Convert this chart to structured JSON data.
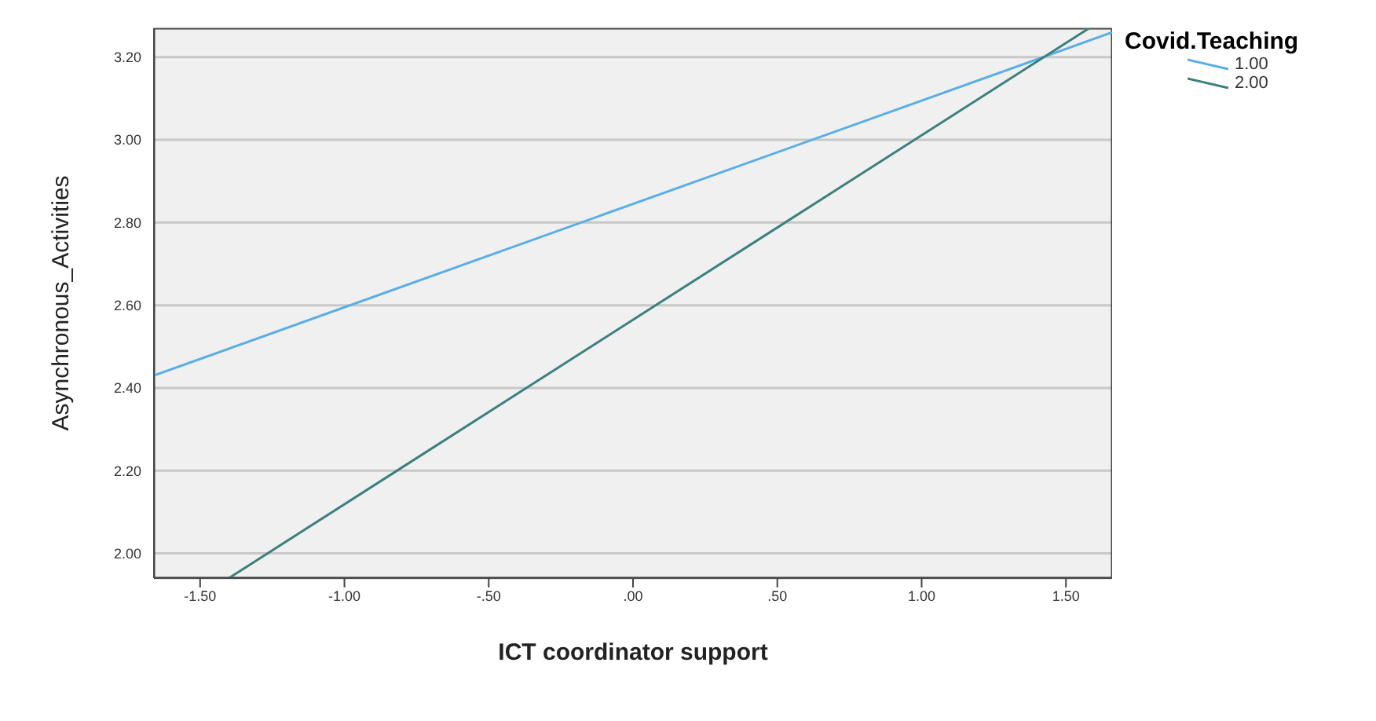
{
  "chart_data": {
    "type": "line",
    "xlabel": "ICT coordinator support",
    "ylabel": "Asynchronous_Activities",
    "legend_title": "Covid.Teaching",
    "legend": "top right",
    "xlim": [
      -1.66,
      1.66
    ],
    "ylim": [
      1.94,
      3.27
    ],
    "xticks": [
      {
        "value": -1.5,
        "label": "-1.50"
      },
      {
        "value": -1,
        "label": "-1.00"
      },
      {
        "value": -0.5,
        "label": "-.50"
      },
      {
        "value": 0,
        "label": ".00"
      },
      {
        "value": 0.5,
        "label": ".50"
      },
      {
        "value": 1,
        "label": "1.00"
      },
      {
        "value": 1.5,
        "label": "1.50"
      }
    ],
    "yticks": [
      {
        "value": 2,
        "label": "2.00"
      },
      {
        "value": 2.2,
        "label": "2.20"
      },
      {
        "value": 2.4,
        "label": "2.40"
      },
      {
        "value": 2.6,
        "label": "2.60"
      },
      {
        "value": 2.8,
        "label": "2.80"
      },
      {
        "value": 3,
        "label": "3.00"
      },
      {
        "value": 3.2,
        "label": "3.20"
      }
    ],
    "grid": "y",
    "marker": "none",
    "series": [
      {
        "name": "1.00",
        "color": "#5aaee6",
        "x": [
          -1.66,
          1.66
        ],
        "values": [
          2.43,
          3.26
        ]
      },
      {
        "name": "2.00",
        "color": "#3d8080",
        "x": [
          -1.4,
          1.58
        ],
        "values": [
          1.94,
          3.27
        ]
      }
    ]
  }
}
